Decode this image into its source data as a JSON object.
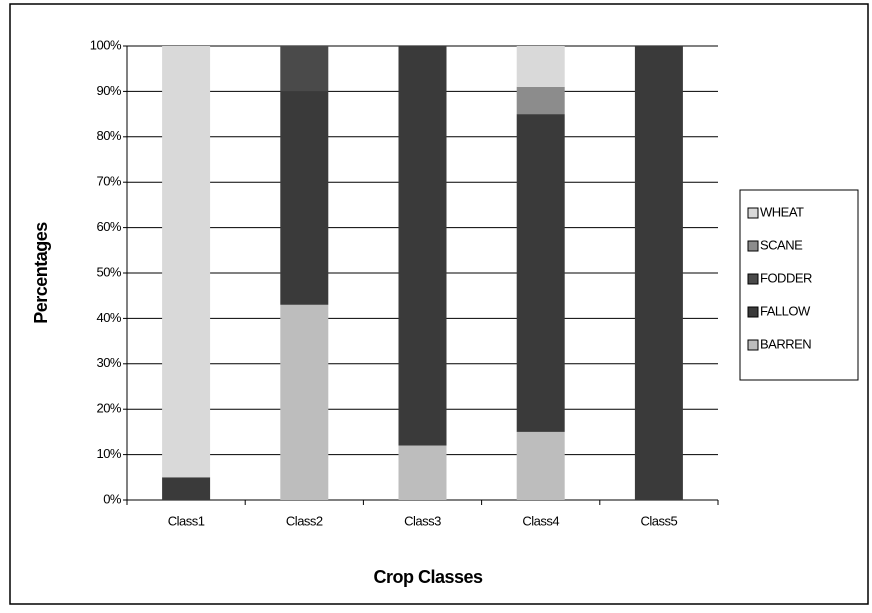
{
  "chart_data": {
    "type": "stacked_bar",
    "x_label": "Crop Classes",
    "y_label": "Percentages",
    "categories": [
      "Class1",
      "Class2",
      "Class3",
      "Class4",
      "Class5"
    ],
    "series": [
      {
        "name": "WHEAT",
        "color": "#d9d9d9",
        "values": [
          95,
          0,
          0,
          9,
          0
        ]
      },
      {
        "name": "SCANE",
        "color": "#8c8c8c",
        "values": [
          0,
          0,
          0,
          6,
          0
        ]
      },
      {
        "name": "FODDER",
        "color": "#4a4a4a",
        "values": [
          0,
          10,
          0,
          0,
          0
        ]
      },
      {
        "name": "FALLOW",
        "color": "#3a3a3a",
        "values": [
          5,
          47,
          88,
          70,
          100
        ]
      },
      {
        "name": "BARREN",
        "color": "#bdbdbd",
        "values": [
          0,
          43,
          12,
          15,
          0
        ]
      }
    ],
    "stack_order": "reverse",
    "ylim": [
      0,
      100
    ],
    "yticks": [
      {
        "value": 0,
        "label": "0%"
      },
      {
        "value": 10,
        "label": "10%"
      },
      {
        "value": 20,
        "label": "20%"
      },
      {
        "value": 30,
        "label": "30%"
      },
      {
        "value": 40,
        "label": "40%"
      },
      {
        "value": 50,
        "label": "50%"
      },
      {
        "value": 60,
        "label": "60%"
      },
      {
        "value": 70,
        "label": "70%"
      },
      {
        "value": 80,
        "label": "80%"
      },
      {
        "value": 90,
        "label": "90%"
      },
      {
        "value": 100,
        "label": "100%"
      }
    ],
    "grid": true,
    "legend": "right"
  }
}
